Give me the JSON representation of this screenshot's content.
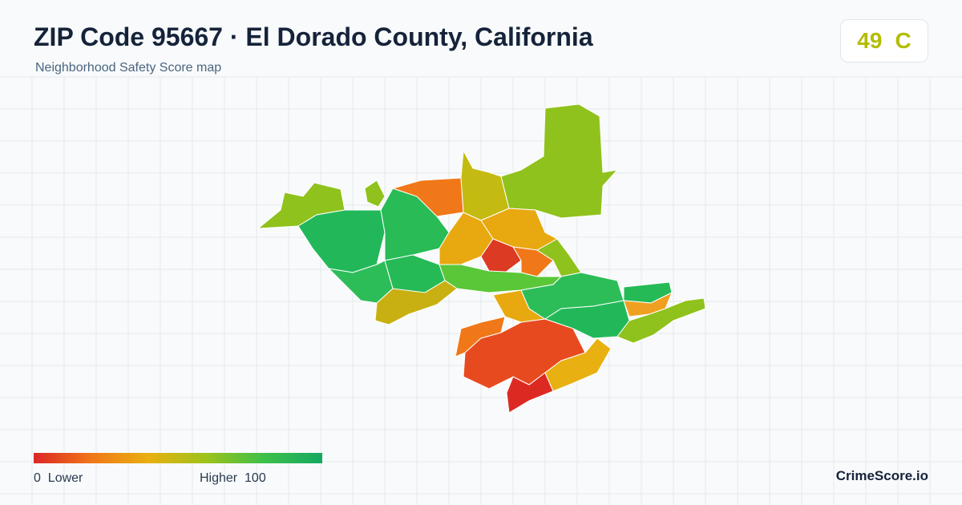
{
  "header": {
    "title": "ZIP Code 95667 · El Dorado County, California",
    "subtitle": "Neighborhood Safety Score map"
  },
  "score": {
    "value": 49,
    "grade": "C"
  },
  "legend": {
    "min": 0,
    "min_label": "Lower",
    "max_label": "Higher",
    "max": 100
  },
  "footer": {
    "brand": "CrimeScore.io"
  }
}
